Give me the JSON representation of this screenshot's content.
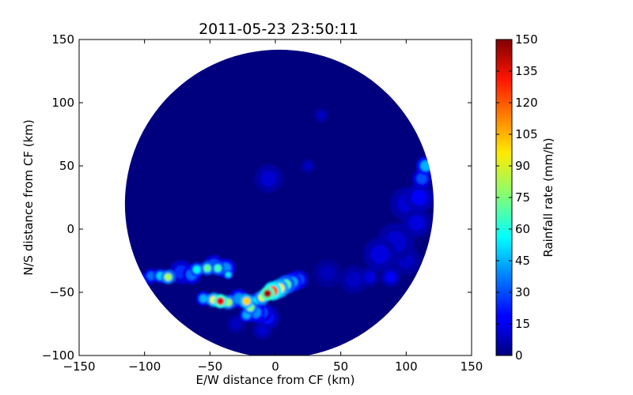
{
  "chart_data": {
    "type": "heatmap",
    "title": "2011-05-23 23:50:11",
    "xlabel": "E/W distance from CF (km)",
    "ylabel": "N/S distance from CF (km)",
    "xlim": [
      -150,
      150
    ],
    "ylim": [
      -100,
      150
    ],
    "xticks": [
      -150,
      -100,
      -50,
      0,
      50,
      100,
      150
    ],
    "xtick_labels": [
      "−150",
      "−100",
      "−50",
      "0",
      "50",
      "100",
      "150"
    ],
    "yticks": [
      -100,
      -50,
      0,
      50,
      100,
      150
    ],
    "ytick_labels": [
      "−100",
      "−50",
      "0",
      "50",
      "100",
      "150"
    ],
    "radar_coverage": {
      "center_km": [
        3,
        20
      ],
      "radius_km": 118
    },
    "colorbar": {
      "label": "Rainfall rate (mm/h)",
      "min": 0,
      "max": 150,
      "ticks": [
        0,
        15,
        30,
        45,
        60,
        75,
        90,
        105,
        120,
        135,
        150
      ],
      "colormap": "jet"
    },
    "rain_cells": [
      {
        "x": -6,
        "y": -51,
        "rate": 145,
        "r": 3
      },
      {
        "x": -2,
        "y": -49,
        "rate": 120,
        "r": 4
      },
      {
        "x": 3,
        "y": -47,
        "rate": 95,
        "r": 4
      },
      {
        "x": 8,
        "y": -44,
        "rate": 70,
        "r": 4
      },
      {
        "x": -10,
        "y": -54,
        "rate": 90,
        "r": 3
      },
      {
        "x": -14,
        "y": -56,
        "rate": 55,
        "r": 3
      },
      {
        "x": 13,
        "y": -42,
        "rate": 45,
        "r": 4
      },
      {
        "x": 18,
        "y": -40,
        "rate": 30,
        "r": 4
      },
      {
        "x": -42,
        "y": -57,
        "rate": 135,
        "r": 3
      },
      {
        "x": -47,
        "y": -56,
        "rate": 95,
        "r": 3
      },
      {
        "x": -36,
        "y": -58,
        "rate": 80,
        "r": 3
      },
      {
        "x": -28,
        "y": -55,
        "rate": 40,
        "r": 4
      },
      {
        "x": -55,
        "y": -55,
        "rate": 45,
        "r": 3
      },
      {
        "x": -22,
        "y": -57,
        "rate": 100,
        "r": 3
      },
      {
        "x": -19,
        "y": -62,
        "rate": 75,
        "r": 3
      },
      {
        "x": -15,
        "y": -66,
        "rate": 40,
        "r": 4
      },
      {
        "x": -22,
        "y": -68,
        "rate": 45,
        "r": 3
      },
      {
        "x": -10,
        "y": -66,
        "rate": 30,
        "r": 4
      },
      {
        "x": -6,
        "y": -70,
        "rate": 20,
        "r": 5
      },
      {
        "x": -60,
        "y": -32,
        "rate": 55,
        "r": 3
      },
      {
        "x": -52,
        "y": -31,
        "rate": 70,
        "r": 3
      },
      {
        "x": -44,
        "y": -31,
        "rate": 65,
        "r": 3
      },
      {
        "x": -38,
        "y": -31,
        "rate": 40,
        "r": 4
      },
      {
        "x": -47,
        "y": -28,
        "rate": 30,
        "r": 4
      },
      {
        "x": -36,
        "y": -36,
        "rate": 55,
        "r": 2
      },
      {
        "x": -64,
        "y": -36,
        "rate": 35,
        "r": 4
      },
      {
        "x": -72,
        "y": -34,
        "rate": 25,
        "r": 5
      },
      {
        "x": -82,
        "y": -38,
        "rate": 80,
        "r": 3
      },
      {
        "x": -88,
        "y": -37,
        "rate": 50,
        "r": 3
      },
      {
        "x": -95,
        "y": -37,
        "rate": 35,
        "r": 3
      },
      {
        "x": -100,
        "y": -40,
        "rate": 25,
        "r": 3
      },
      {
        "x": 115,
        "y": 50,
        "rate": 45,
        "r": 4
      },
      {
        "x": 112,
        "y": 40,
        "rate": 30,
        "r": 4
      },
      {
        "x": 110,
        "y": 25,
        "rate": 18,
        "r": 6
      },
      {
        "x": 100,
        "y": 20,
        "rate": 12,
        "r": 7
      },
      {
        "x": 108,
        "y": 5,
        "rate": 14,
        "r": 6
      },
      {
        "x": 92,
        "y": -10,
        "rate": 12,
        "r": 8
      },
      {
        "x": 80,
        "y": -20,
        "rate": 14,
        "r": 7
      },
      {
        "x": 88,
        "y": -38,
        "rate": 18,
        "r": 4
      },
      {
        "x": 72,
        "y": -38,
        "rate": 14,
        "r": 4
      },
      {
        "x": 100,
        "y": -25,
        "rate": 10,
        "r": 6
      },
      {
        "x": 60,
        "y": -40,
        "rate": 10,
        "r": 6
      },
      {
        "x": -5,
        "y": 40,
        "rate": 12,
        "r": 6
      },
      {
        "x": 25,
        "y": 50,
        "rate": 10,
        "r": 3
      },
      {
        "x": 35,
        "y": 90,
        "rate": 10,
        "r": 3
      },
      {
        "x": 40,
        "y": -35,
        "rate": 8,
        "r": 6
      },
      {
        "x": -10,
        "y": -80,
        "rate": 12,
        "r": 4
      },
      {
        "x": -30,
        "y": -75,
        "rate": 10,
        "r": 4
      }
    ]
  }
}
